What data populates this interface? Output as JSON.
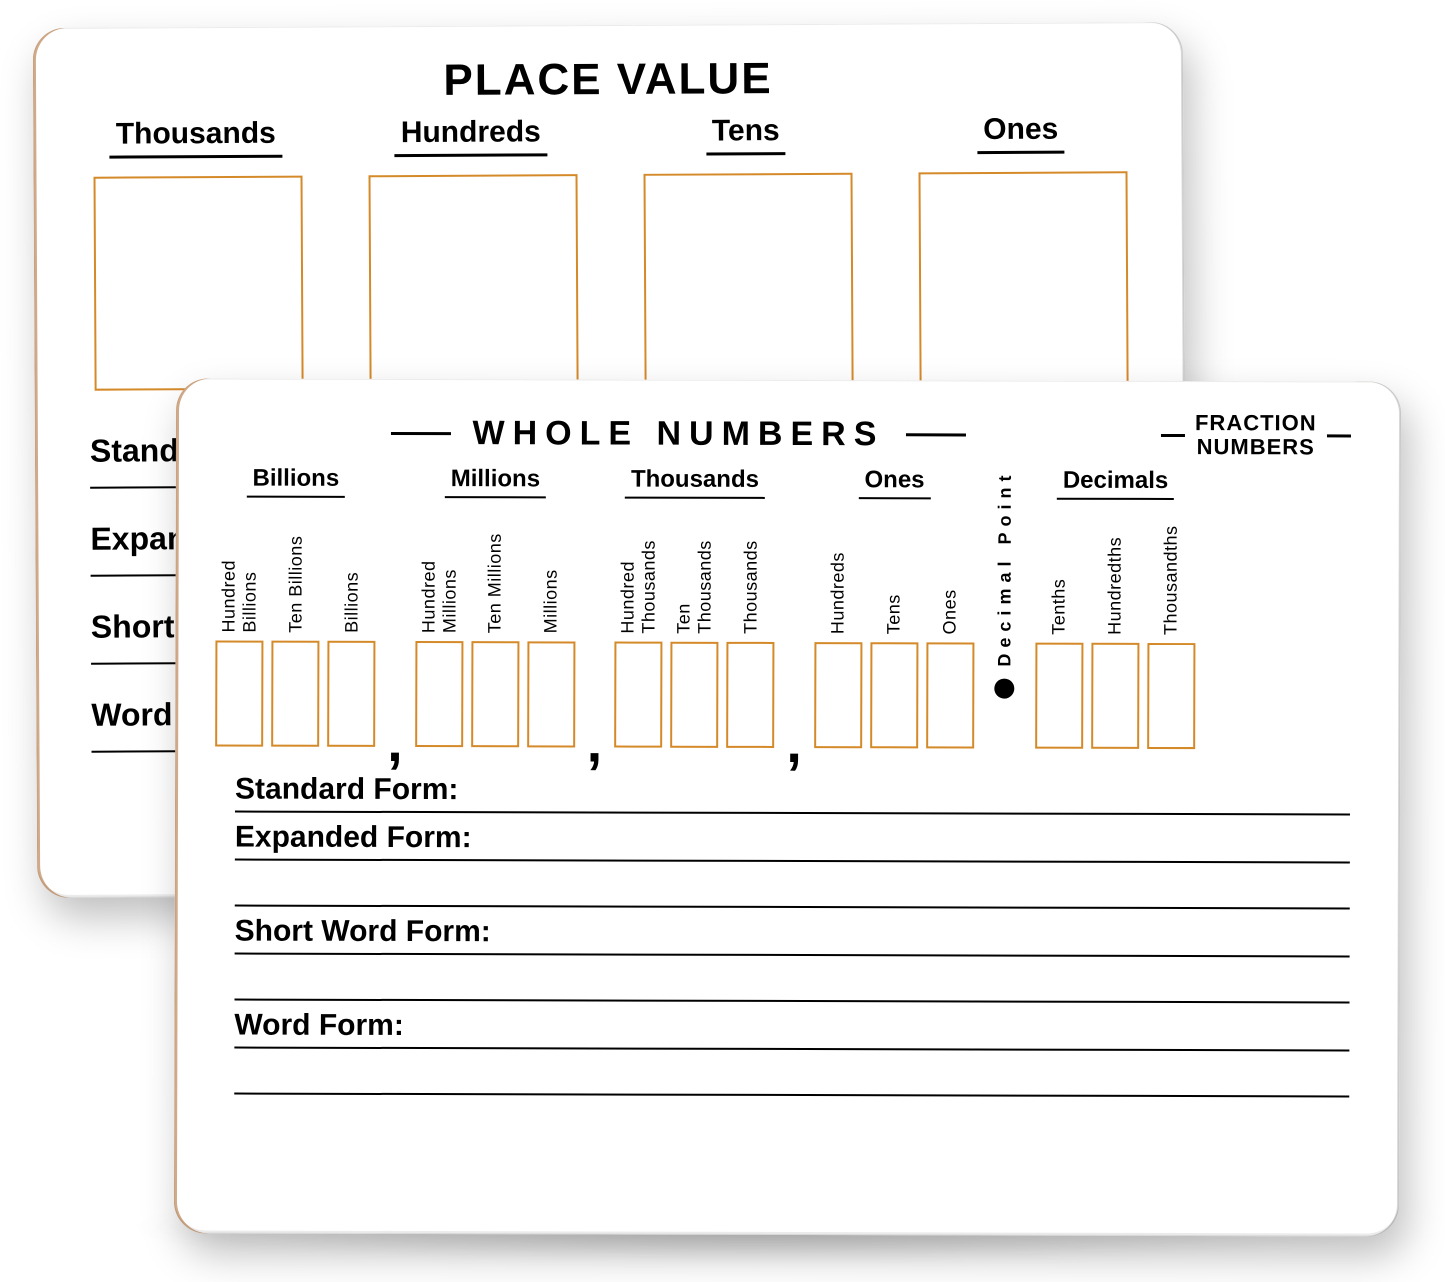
{
  "colors": {
    "box_border": "#d58a2a",
    "text": "#000000",
    "board_bg": "#ffffff"
  },
  "back_board": {
    "title": "PLACE VALUE",
    "title_fontsize": 44,
    "columns": [
      {
        "label": "Thousands"
      },
      {
        "label": "Hundreds"
      },
      {
        "label": "Tens"
      },
      {
        "label": "Ones"
      }
    ],
    "column_label_fontsize": 30,
    "forms": [
      {
        "label": "Standard Form:"
      },
      {
        "label": "Expanded Form:"
      },
      {
        "label": "Short Word Form:"
      },
      {
        "label": "Word Form:"
      }
    ],
    "form_label_fontsize": 32
  },
  "front_board": {
    "whole_title": "WHOLE NUMBERS",
    "whole_title_fontsize": 34,
    "fraction_title_line1": "FRACTION",
    "fraction_title_line2": "NUMBERS",
    "fraction_title_fontsize": 22,
    "group_label_fontsize": 24,
    "groups": [
      {
        "label": "Billions",
        "cells": [
          "Hundred Billions",
          "Ten Billions",
          "Billions"
        ],
        "trailing_comma": true
      },
      {
        "label": "Millions",
        "cells": [
          "Hundred Millions",
          "Ten Millions",
          "Millions"
        ],
        "trailing_comma": true
      },
      {
        "label": "Thousands",
        "cells": [
          "Hundred Thousands",
          "Ten Thousands",
          "Thousands"
        ],
        "trailing_comma": true
      },
      {
        "label": "Ones",
        "cells": [
          "Hundreds",
          "Tens",
          "Ones"
        ],
        "trailing_comma": false
      }
    ],
    "decimal_label": "Decimal Point",
    "decimals_group": {
      "label": "Decimals",
      "cells": [
        "Tenths",
        "Hundredths",
        "Thousandths"
      ]
    },
    "forms": [
      {
        "label": "Standard Form:",
        "extra_blank_lines": 0
      },
      {
        "label": "Expanded Form:",
        "extra_blank_lines": 1
      },
      {
        "label": "Short Word Form:",
        "extra_blank_lines": 1
      },
      {
        "label": "Word Form:",
        "extra_blank_lines": 1
      }
    ],
    "form_label_fontsize": 30
  }
}
